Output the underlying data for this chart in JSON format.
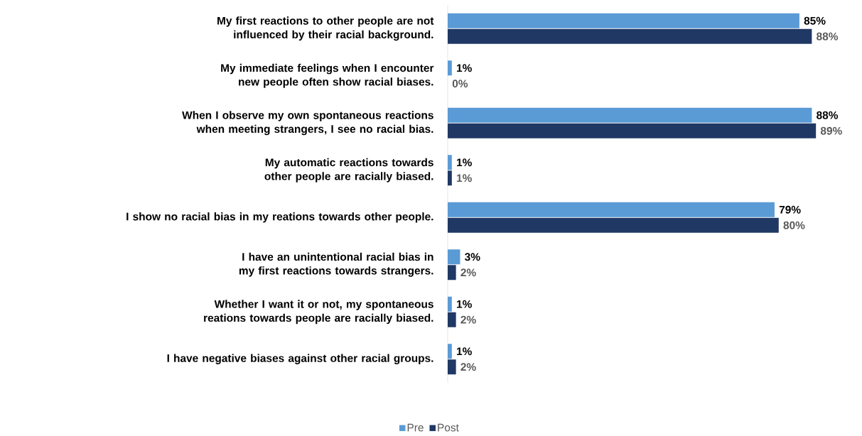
{
  "chart_data": {
    "type": "bar",
    "orientation": "horizontal",
    "legend": "bottom",
    "categories": [
      "My first reactions to other people are not influenced by their racial background.",
      "My immediate feelings when I encounter new people often show racial biases.",
      "When I observe my own spontaneous reactions when meeting strangers, I see no racial bias.",
      "My automatic reactions towards other people are racially biased.",
      "I show no racial bias in my reations towards other people.",
      "I have an unintentional racial bias in my first reactions towards strangers.",
      "Whether I want it or not, my spontaneous reations towards people are racially biased.",
      "I have negative biases against other racial groups."
    ],
    "series": [
      {
        "name": "Pre",
        "color": "#5b9bd5",
        "values": [
          85,
          1,
          88,
          1,
          79,
          3,
          1,
          1
        ],
        "value_labels": [
          "85%",
          "1%",
          "88%",
          "1%",
          "79%",
          "3%",
          "1%",
          "1%"
        ]
      },
      {
        "name": "Post",
        "color": "#203864",
        "values": [
          88,
          0,
          89,
          1,
          80,
          2,
          2,
          2
        ],
        "value_labels": [
          "88%",
          "0%",
          "89%",
          "1%",
          "80%",
          "2%",
          "2%",
          "2%"
        ]
      }
    ]
  }
}
